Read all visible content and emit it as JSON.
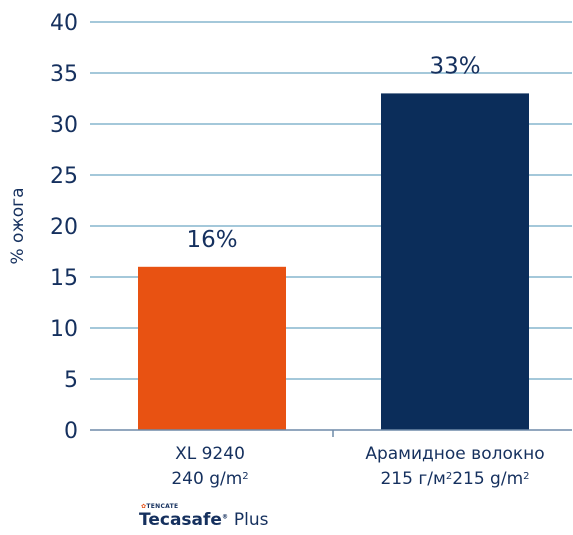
{
  "chart_data": {
    "type": "bar",
    "ylabel": "% ожога",
    "ylim": [
      0,
      40
    ],
    "yticks": [
      0,
      5,
      10,
      15,
      20,
      25,
      30,
      35,
      40
    ],
    "grid": true,
    "categories": [
      {
        "line1": "XL 9240",
        "line2": "240 g/m",
        "line2_sup": "2"
      },
      {
        "line1": "Арамидное волокно",
        "line2a": "215 г/м",
        "line2a_sup": "2",
        "line2b": "215 g/m",
        "line2b_sup": "2"
      }
    ],
    "values": [
      16,
      33
    ],
    "data_labels": [
      "16%",
      "33%"
    ],
    "colors": [
      "#e85212",
      "#0b2d5a"
    ]
  },
  "logo": {
    "brand_small": "TENCATE",
    "name": "Tecasafe",
    "reg": "®",
    "suffix": "Plus"
  }
}
